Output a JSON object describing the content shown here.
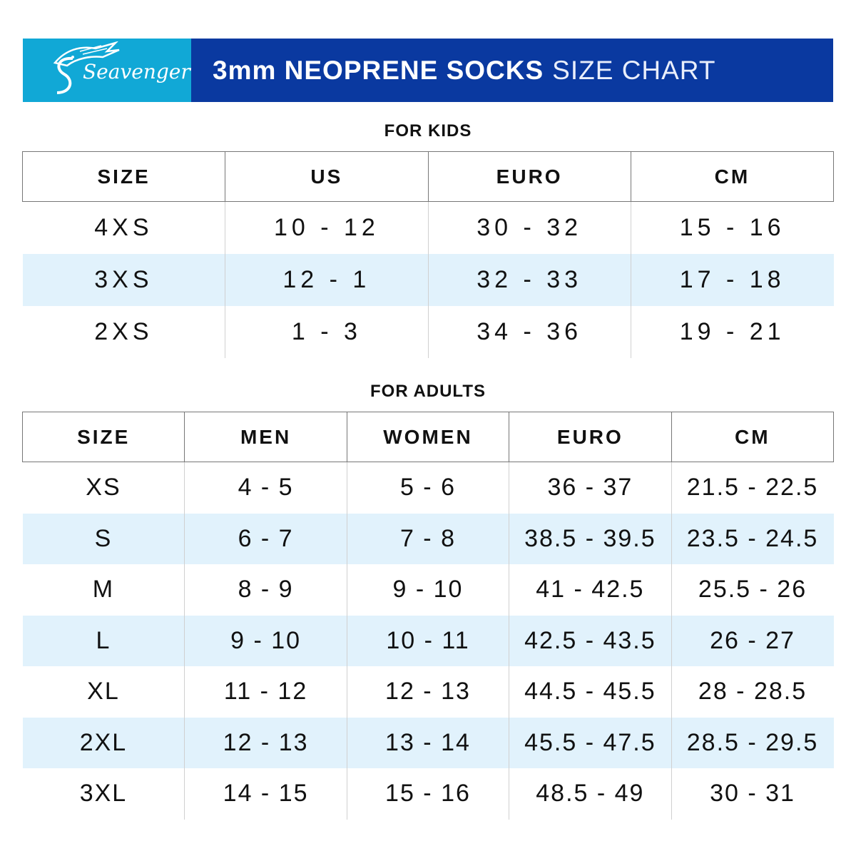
{
  "header": {
    "logo_text": "Seavenger",
    "title_bold": "3mm NEOPRENE SOCKS",
    "title_light": "SIZE CHART",
    "colors": {
      "logo_bg": "#11a8d6",
      "title_bg": "#0a39a0",
      "row_alt": "#e1f2fc"
    }
  },
  "chart_data": [
    {
      "type": "table",
      "title": "FOR KIDS",
      "columns": [
        "SIZE",
        "US",
        "EURO",
        "CM"
      ],
      "rows": [
        [
          "4XS",
          "10 - 12",
          "30 - 32",
          "15 - 16"
        ],
        [
          "3XS",
          "12 - 1",
          "32 - 33",
          "17 - 18"
        ],
        [
          "2XS",
          "1 - 3",
          "34 - 36",
          "19 - 21"
        ]
      ]
    },
    {
      "type": "table",
      "title": "FOR ADULTS",
      "columns": [
        "SIZE",
        "MEN",
        "WOMEN",
        "EURO",
        "CM"
      ],
      "rows": [
        [
          "XS",
          "4 - 5",
          "5 - 6",
          "36 - 37",
          "21.5 - 22.5"
        ],
        [
          "S",
          "6 - 7",
          "7 - 8",
          "38.5 - 39.5",
          "23.5 - 24.5"
        ],
        [
          "M",
          "8 - 9",
          "9 - 10",
          "41 - 42.5",
          "25.5 - 26"
        ],
        [
          "L",
          "9 - 10",
          "10 - 11",
          "42.5 - 43.5",
          "26 - 27"
        ],
        [
          "XL",
          "11 - 12",
          "12 - 13",
          "44.5 - 45.5",
          "28 - 28.5"
        ],
        [
          "2XL",
          "12 - 13",
          "13 - 14",
          "45.5 - 47.5",
          "28.5 - 29.5"
        ],
        [
          "3XL",
          "14 - 15",
          "15 - 16",
          "48.5 - 49",
          "30 - 31"
        ]
      ]
    }
  ]
}
